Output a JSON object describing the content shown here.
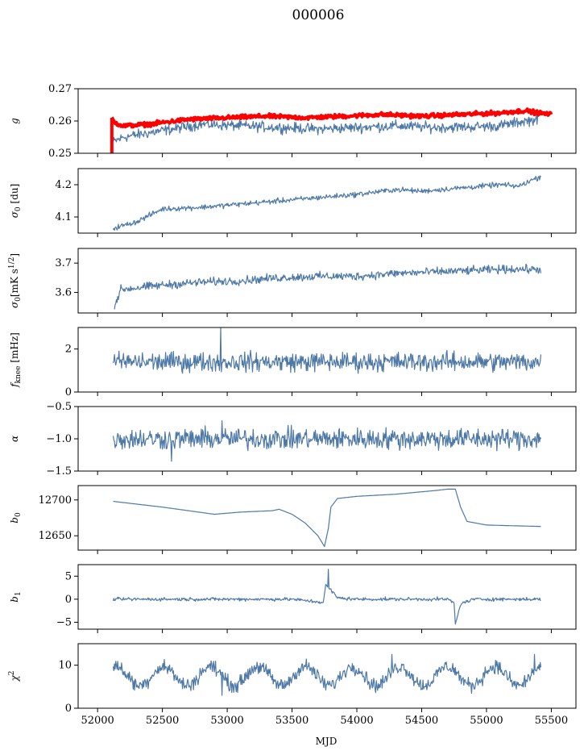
{
  "figure": {
    "title": "000006",
    "xlabel": "MJD"
  },
  "colors": {
    "series": "#4e79a7",
    "highlight": "#ff0000",
    "axes": "#000000"
  },
  "chart_data": [
    {
      "type": "line",
      "id": "g",
      "ylabel": "g",
      "ylim": [
        0.25,
        0.27
      ],
      "yticks": [
        0.25,
        0.26,
        0.27
      ],
      "ytick_labels": [
        "0.25",
        "0.26",
        "0.27"
      ],
      "series": [
        {
          "color": "#4e79a7",
          "width": 1.2,
          "noise": 0.0008,
          "points": [
            [
              52120,
              0.2535
            ],
            [
              52200,
              0.255
            ],
            [
              52500,
              0.257
            ],
            [
              52800,
              0.259
            ],
            [
              53100,
              0.2585
            ],
            [
              53400,
              0.258
            ],
            [
              53700,
              0.2575
            ],
            [
              54000,
              0.258
            ],
            [
              54300,
              0.2585
            ],
            [
              54600,
              0.258
            ],
            [
              54900,
              0.2582
            ],
            [
              55100,
              0.2585
            ],
            [
              55300,
              0.26
            ],
            [
              55400,
              0.2605
            ]
          ]
        },
        {
          "color": "#ff0000",
          "width": 4,
          "noise": 0.0003,
          "points": [
            [
              52110,
              0.261
            ],
            [
              52130,
              0.2595
            ],
            [
              52200,
              0.2585
            ],
            [
              52400,
              0.259
            ],
            [
              52700,
              0.2605
            ],
            [
              53000,
              0.261
            ],
            [
              53300,
              0.2615
            ],
            [
              53600,
              0.261
            ],
            [
              53900,
              0.2615
            ],
            [
              54200,
              0.262
            ],
            [
              54500,
              0.2615
            ],
            [
              54800,
              0.262
            ],
            [
              55100,
              0.2625
            ],
            [
              55300,
              0.2632
            ],
            [
              55400,
              0.2625
            ],
            [
              55500,
              0.262
            ]
          ]
        }
      ]
    },
    {
      "type": "line",
      "id": "sigma0-du",
      "ylabel": "σ₀ [du]",
      "ylim": [
        4.05,
        4.25
      ],
      "yticks": [
        4.1,
        4.2
      ],
      "ytick_labels": [
        "4.1",
        "4.2"
      ],
      "series": [
        {
          "color": "#4e79a7",
          "width": 1.2,
          "noise": 0.004,
          "points": [
            [
              52120,
              4.065
            ],
            [
              52300,
              4.085
            ],
            [
              52500,
              4.125
            ],
            [
              52800,
              4.13
            ],
            [
              53100,
              4.14
            ],
            [
              53400,
              4.15
            ],
            [
              53700,
              4.16
            ],
            [
              54000,
              4.17
            ],
            [
              54300,
              4.185
            ],
            [
              54500,
              4.18
            ],
            [
              54800,
              4.19
            ],
            [
              55100,
              4.2
            ],
            [
              55250,
              4.195
            ],
            [
              55350,
              4.215
            ],
            [
              55420,
              4.225
            ]
          ]
        }
      ]
    },
    {
      "type": "line",
      "id": "sigma0-mks",
      "ylabel": "σ₀[mK s^1/2]",
      "ylim": [
        3.53,
        3.75
      ],
      "yticks": [
        3.6,
        3.7
      ],
      "ytick_labels": [
        "3.6",
        "3.7"
      ],
      "series": [
        {
          "color": "#4e79a7",
          "width": 1.2,
          "noise": 0.007,
          "points": [
            [
              52130,
              3.555
            ],
            [
              52180,
              3.61
            ],
            [
              52500,
              3.625
            ],
            [
              52800,
              3.635
            ],
            [
              53100,
              3.64
            ],
            [
              53400,
              3.65
            ],
            [
              53700,
              3.655
            ],
            [
              54000,
              3.655
            ],
            [
              54300,
              3.665
            ],
            [
              54600,
              3.67
            ],
            [
              54900,
              3.675
            ],
            [
              55200,
              3.68
            ],
            [
              55420,
              3.678
            ]
          ]
        }
      ]
    },
    {
      "type": "line",
      "id": "fknee",
      "ylabel": "f_knee [mHz]",
      "ylim": [
        0,
        3
      ],
      "yticks": [
        0,
        2
      ],
      "ytick_labels": [
        "0",
        "2"
      ],
      "series": [
        {
          "color": "#4e79a7",
          "width": 1.2,
          "noise": 0.22,
          "points": [
            [
              52120,
              1.4
            ],
            [
              53000,
              1.4
            ],
            [
              54000,
              1.4
            ],
            [
              55420,
              1.4
            ]
          ],
          "spikes": [
            [
              52950,
              3.0
            ]
          ]
        }
      ]
    },
    {
      "type": "line",
      "id": "alpha",
      "ylabel": "α",
      "ylim": [
        -1.5,
        -0.5
      ],
      "yticks": [
        -1.5,
        -1.0,
        -0.5
      ],
      "ytick_labels": [
        "−1.5",
        "−1.0",
        "−0.5"
      ],
      "series": [
        {
          "color": "#4e79a7",
          "width": 1.2,
          "noise": 0.08,
          "points": [
            [
              52120,
              -1.0
            ],
            [
              53000,
              -1.0
            ],
            [
              54000,
              -1.0
            ],
            [
              55420,
              -1.0
            ]
          ],
          "spikes": [
            [
              52570,
              -1.35
            ],
            [
              52960,
              -0.72
            ]
          ]
        }
      ]
    },
    {
      "type": "line",
      "id": "b0",
      "ylabel": "b₀",
      "ylim": [
        12630,
        12720
      ],
      "yticks": [
        12650,
        12700
      ],
      "ytick_labels": [
        "12650",
        "12700"
      ],
      "series": [
        {
          "color": "#4e79a7",
          "width": 1.2,
          "noise": 0,
          "points": [
            [
              52120,
              12698
            ],
            [
              52500,
              12690
            ],
            [
              52900,
              12680
            ],
            [
              53100,
              12683
            ],
            [
              53350,
              12685
            ],
            [
              53400,
              12687
            ],
            [
              53500,
              12680
            ],
            [
              53600,
              12668
            ],
            [
              53700,
              12650
            ],
            [
              53750,
              12635
            ],
            [
              53780,
              12660
            ],
            [
              53800,
              12690
            ],
            [
              53850,
              12702
            ],
            [
              54000,
              12705
            ],
            [
              54300,
              12708
            ],
            [
              54600,
              12713
            ],
            [
              54700,
              12715
            ],
            [
              54760,
              12715
            ],
            [
              54800,
              12690
            ],
            [
              54850,
              12670
            ],
            [
              55000,
              12665
            ],
            [
              55200,
              12664
            ],
            [
              55420,
              12663
            ]
          ]
        }
      ]
    },
    {
      "type": "line",
      "id": "b1",
      "ylabel": "b₁",
      "ylim": [
        -6.5,
        7.5
      ],
      "yticks": [
        -5,
        0,
        5
      ],
      "ytick_labels": [
        "−5",
        "0",
        "5"
      ],
      "series": [
        {
          "color": "#4e79a7",
          "width": 1.2,
          "noise": 0.18,
          "points": [
            [
              52120,
              0
            ],
            [
              53500,
              0
            ],
            [
              53740,
              -0.7
            ],
            [
              53760,
              3.0
            ],
            [
              53800,
              2.0
            ],
            [
              53850,
              0.3
            ],
            [
              54000,
              0
            ],
            [
              54700,
              0
            ],
            [
              54750,
              -0.8
            ],
            [
              54760,
              -5.5
            ],
            [
              54800,
              -1.0
            ],
            [
              54900,
              0
            ],
            [
              55420,
              0
            ]
          ],
          "spikes": [
            [
              53780,
              6.5
            ]
          ]
        }
      ]
    },
    {
      "type": "line",
      "id": "chi2",
      "ylabel": "χ²",
      "ylim": [
        0,
        15
      ],
      "yticks": [
        0,
        10
      ],
      "ytick_labels": [
        "0",
        "10"
      ],
      "xticks": [
        52000,
        52500,
        53000,
        53500,
        54000,
        54500,
        55000,
        55500
      ],
      "xtick_labels": [
        "52000",
        "52500",
        "53000",
        "53500",
        "54000",
        "54500",
        "55000",
        "55500"
      ],
      "series": [
        {
          "color": "#4e79a7",
          "width": 1.2,
          "noise": 0.8,
          "seasonal": {
            "mean": 7.5,
            "amp": 2.2,
            "period": 365.25,
            "phase": 52120
          },
          "points": [
            [
              52120,
              7.5
            ],
            [
              55420,
              7.5
            ]
          ],
          "spikes": [
            [
              52960,
              3.0
            ],
            [
              54270,
              12.5
            ],
            [
              55370,
              12.5
            ]
          ]
        }
      ]
    }
  ]
}
